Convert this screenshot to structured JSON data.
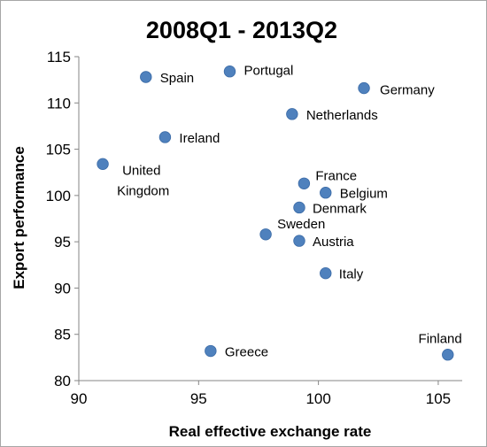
{
  "chart_data": {
    "type": "scatter",
    "title": "2008Q1 - 2013Q2",
    "xlabel": "Real effective exchange rate",
    "ylabel": "Export performance",
    "xlim": [
      90,
      106
    ],
    "ylim": [
      80,
      115
    ],
    "x_ticks": [
      "90",
      "95",
      "100",
      "105"
    ],
    "y_ticks": [
      "80",
      "85",
      "90",
      "95",
      "100",
      "105",
      "110",
      "115"
    ],
    "grid": false,
    "legend": "none",
    "marker_color": "#4F81BD",
    "points": [
      {
        "label": "Spain",
        "x": 92.8,
        "y": 112.8
      },
      {
        "label": "Portugal",
        "x": 96.3,
        "y": 113.4
      },
      {
        "label": "Germany",
        "x": 101.9,
        "y": 111.6
      },
      {
        "label": "Netherlands",
        "x": 98.9,
        "y": 108.8
      },
      {
        "label": "Ireland",
        "x": 93.6,
        "y": 106.3
      },
      {
        "label": "United Kingdom",
        "label_lines": [
          "United",
          "Kingdom"
        ],
        "x": 91.0,
        "y": 103.4
      },
      {
        "label": "France",
        "x": 99.4,
        "y": 101.3
      },
      {
        "label": "Belgium",
        "x": 100.3,
        "y": 100.3
      },
      {
        "label": "Denmark",
        "x": 99.2,
        "y": 98.7
      },
      {
        "label": "Sweden",
        "x": 97.8,
        "y": 95.8
      },
      {
        "label": "Austria",
        "x": 99.2,
        "y": 95.1
      },
      {
        "label": "Italy",
        "x": 100.3,
        "y": 91.6
      },
      {
        "label": "Greece",
        "x": 95.5,
        "y": 83.2
      },
      {
        "label": "Finland",
        "x": 105.4,
        "y": 82.8
      }
    ]
  }
}
